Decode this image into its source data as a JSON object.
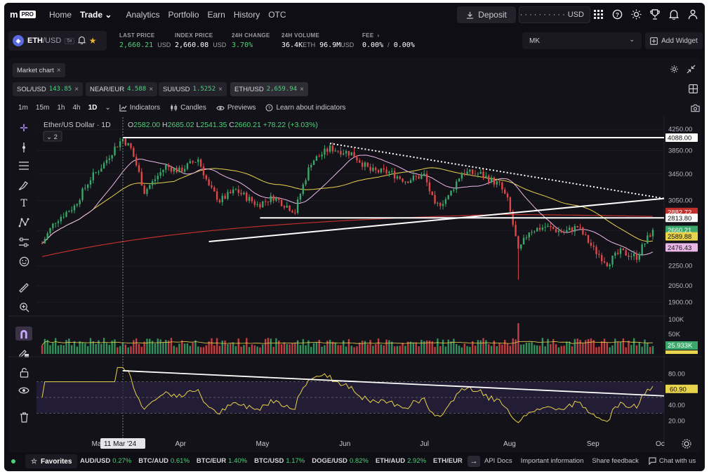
{
  "brand": {
    "logo": "m",
    "badge": "PRO"
  },
  "nav": {
    "links": [
      "Home",
      "Trade",
      "Analytics",
      "Portfolio",
      "Earn",
      "History",
      "OTC"
    ],
    "trade_chevron": "⌄",
    "deposit_label": "Deposit",
    "balance_mask": "· · · · · · · · · ·",
    "balance_currency": "USD"
  },
  "pair": {
    "symbol": "ETH",
    "quote": "/USD",
    "leverage": "5x",
    "stats": [
      {
        "label": "LAST PRICE",
        "value": "2,660.21",
        "unit": "USD",
        "color": "green"
      },
      {
        "label": "INDEX PRICE",
        "value": "2,660.08",
        "unit": "USD",
        "color": "white"
      },
      {
        "label": "24H CHANGE",
        "value": "3.70%",
        "unit": "",
        "color": "green"
      },
      {
        "label": "24H VOLUME",
        "value": "36.4K",
        "unit": "ETH",
        "value2": "96.9M",
        "unit2": "USD",
        "color": "white"
      },
      {
        "label": "FEE",
        "value": "0.00%",
        "unit": "/",
        "value2": "0.00%",
        "unit2": "",
        "color": "white"
      }
    ],
    "fee_chevron": "›"
  },
  "account_select": {
    "value": "MK"
  },
  "add_widget_label": "Add Widget",
  "panel": {
    "tab_label": "Market chart",
    "chips": [
      {
        "symbol": "SOL/USD",
        "price": "143.85"
      },
      {
        "symbol": "NEAR/EUR",
        "price": "4.588"
      },
      {
        "symbol": "SUI/USD",
        "price": "1.5252"
      },
      {
        "symbol": "ETH/USD",
        "price": "2,659.94"
      }
    ],
    "timeframes": [
      "1m",
      "15m",
      "1h",
      "4h",
      "1D"
    ],
    "active_timeframe": "1D",
    "tools": {
      "indicators": "Indicators",
      "candles": "Candles",
      "previews": "Previews",
      "learn": "Learn about indicators"
    }
  },
  "chart_data": {
    "type": "candlestick",
    "title": "Ether/US Dollar · 1D",
    "ohlc_label": {
      "o": "2582.00",
      "h": "2685.02",
      "l": "2541.35",
      "c": "2660.21",
      "chg": "+78.22 (+3.03%)"
    },
    "legend_collapse": "2",
    "price_axis": [
      "4250.00",
      "3850.00",
      "3450.00",
      "3050.00",
      "2650.00",
      "2250.00",
      "2050.00",
      "1900.00"
    ],
    "price_scale": "log",
    "price_ylim": [
      1800,
      4350
    ],
    "price_tags": [
      {
        "value": "4088.00",
        "kind": "hline"
      },
      {
        "value": "2882.72",
        "kind": "ma200"
      },
      {
        "value": "2813.80",
        "kind": "hline"
      },
      {
        "value": "2660.21",
        "kind": "last"
      },
      {
        "value": "2589.88",
        "kind": "ma50"
      },
      {
        "value": "2476.43",
        "kind": "ma20"
      }
    ],
    "volume_axis": [
      "100K",
      "50K"
    ],
    "volume_tags": [
      "25.933K",
      "12.81K"
    ],
    "rsi_axis": [
      "80.00",
      "60.00",
      "40.00",
      "20.00"
    ],
    "rsi_tag": "60.90",
    "rsi_bands": [
      70,
      50,
      30
    ],
    "x_labels": [
      "Mar",
      "Apr",
      "May",
      "Jun",
      "Jul",
      "Aug",
      "Sep",
      "Oc"
    ],
    "crosshair_label": "11 Mar '24",
    "date_range": [
      "2024-02-10",
      "2024-09-24"
    ],
    "close_path": [
      [
        "2024-02-10",
        2500
      ],
      [
        "2024-02-15",
        2780
      ],
      [
        "2024-02-22",
        2970
      ],
      [
        "2024-02-28",
        3380
      ],
      [
        "2024-03-04",
        3620
      ],
      [
        "2024-03-08",
        3900
      ],
      [
        "2024-03-11",
        4070
      ],
      [
        "2024-03-14",
        3880
      ],
      [
        "2024-03-19",
        3180
      ],
      [
        "2024-03-22",
        3320
      ],
      [
        "2024-03-27",
        3580
      ],
      [
        "2024-04-01",
        3500
      ],
      [
        "2024-04-08",
        3700
      ],
      [
        "2024-04-12",
        3250
      ],
      [
        "2024-04-16",
        3050
      ],
      [
        "2024-04-22",
        3200
      ],
      [
        "2024-04-30",
        2990
      ],
      [
        "2024-05-06",
        3100
      ],
      [
        "2024-05-14",
        2900
      ],
      [
        "2024-05-20",
        3650
      ],
      [
        "2024-05-27",
        3890
      ],
      [
        "2024-06-04",
        3800
      ],
      [
        "2024-06-11",
        3500
      ],
      [
        "2024-06-18",
        3480
      ],
      [
        "2024-06-24",
        3350
      ],
      [
        "2024-07-01",
        3430
      ],
      [
        "2024-07-05",
        2960
      ],
      [
        "2024-07-10",
        3100
      ],
      [
        "2024-07-15",
        3480
      ],
      [
        "2024-07-22",
        3450
      ],
      [
        "2024-07-29",
        3280
      ],
      [
        "2024-08-01",
        3050
      ],
      [
        "2024-08-05",
        2400
      ],
      [
        "2024-08-09",
        2650
      ],
      [
        "2024-08-15",
        2700
      ],
      [
        "2024-08-22",
        2630
      ],
      [
        "2024-08-27",
        2700
      ],
      [
        "2024-09-02",
        2430
      ],
      [
        "2024-09-07",
        2280
      ],
      [
        "2024-09-12",
        2400
      ],
      [
        "2024-09-18",
        2350
      ],
      [
        "2024-09-24",
        2660
      ]
    ],
    "ma_colors": {
      "ma20": "#e9b8e8",
      "ma50": "#e8d34c",
      "ma200": "#c0302a"
    },
    "colors": {
      "up": "#3aa86a",
      "down": "#e04848",
      "rsi": "#e8d34c"
    }
  },
  "bottom": {
    "favorites_label": "Favorites",
    "tickers": [
      {
        "pair": "AUD/USD",
        "chg": "0.27%"
      },
      {
        "pair": "BTC/AUD",
        "chg": "0.61%"
      },
      {
        "pair": "BTC/EUR",
        "chg": "1.40%"
      },
      {
        "pair": "BTC/USD",
        "chg": "1.17%"
      },
      {
        "pair": "DOGE/USD",
        "chg": "0.82%"
      },
      {
        "pair": "ETH/AUD",
        "chg": "2.92%"
      },
      {
        "pair": "ETH/EUR",
        "chg": ""
      }
    ],
    "links": [
      "API Docs",
      "Important information",
      "Share feedback"
    ],
    "chat_label": "Chat with us"
  }
}
